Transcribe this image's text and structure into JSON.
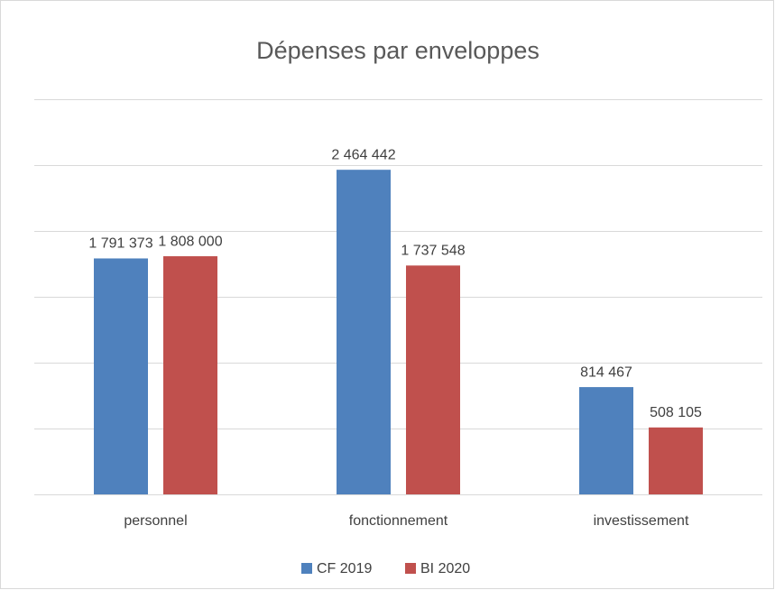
{
  "chart_data": {
    "type": "bar",
    "title": "Dépenses par enveloppes",
    "categories": [
      "personnel",
      "fonctionnement",
      "investissement"
    ],
    "series": [
      {
        "name": "CF 2019",
        "color": "#4f81bd",
        "values": [
          1791373,
          2464442,
          814467
        ],
        "value_labels": [
          "1 791 373",
          "2 464 442",
          "814 467"
        ]
      },
      {
        "name": "BI 2020",
        "color": "#c0504d",
        "values": [
          1808000,
          1737548,
          508105
        ],
        "value_labels": [
          "1 808 000",
          "1 737 548",
          "508 105"
        ]
      }
    ],
    "ylim": [
      0,
      3000000
    ],
    "yticks": [
      0,
      500000,
      1000000,
      1500000,
      2000000,
      2500000,
      3000000
    ],
    "grid": true,
    "legend": "bottom"
  }
}
